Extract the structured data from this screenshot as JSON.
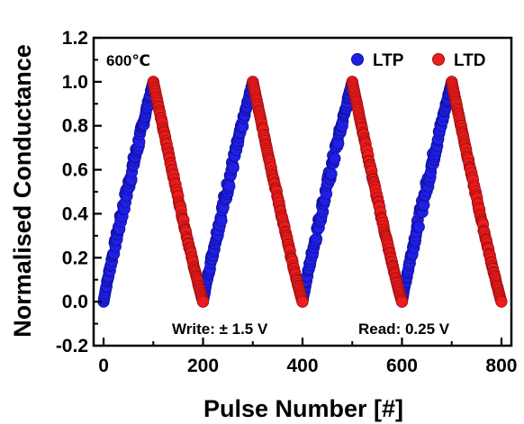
{
  "chart_data": {
    "type": "scatter",
    "xlabel": "Pulse Number [#]",
    "ylabel": "Normalised Conductance",
    "xlim": [
      -20,
      820
    ],
    "ylim": [
      -0.2,
      1.2
    ],
    "xticks": [
      0,
      200,
      400,
      600,
      800
    ],
    "yticks": [
      -0.2,
      0.0,
      0.2,
      0.4,
      0.6,
      0.8,
      1.0,
      1.2
    ],
    "legend_position": "top-right",
    "annotations": {
      "temperature": "600℃",
      "write": "Write: ± 1.5 V",
      "read": "Read: 0.25 V"
    },
    "series": [
      {
        "name": "LTP",
        "color": "#1f1fe6",
        "cycles": [
          {
            "x_start": 0,
            "x_end": 100,
            "y_start": 0.0,
            "y_end": 1.0
          },
          {
            "x_start": 200,
            "x_end": 300,
            "y_start": 0.0,
            "y_end": 1.0
          },
          {
            "x_start": 400,
            "x_end": 500,
            "y_start": 0.0,
            "y_end": 1.0
          },
          {
            "x_start": 600,
            "x_end": 700,
            "y_start": 0.0,
            "y_end": 1.0
          }
        ]
      },
      {
        "name": "LTD",
        "color": "#ee1c1c",
        "cycles": [
          {
            "x_start": 100,
            "x_end": 200,
            "y_start": 1.0,
            "y_end": 0.0
          },
          {
            "x_start": 300,
            "x_end": 400,
            "y_start": 1.0,
            "y_end": 0.0
          },
          {
            "x_start": 500,
            "x_end": 600,
            "y_start": 1.0,
            "y_end": 0.0
          },
          {
            "x_start": 700,
            "x_end": 800,
            "y_start": 1.0,
            "y_end": 0.0
          }
        ]
      }
    ]
  }
}
